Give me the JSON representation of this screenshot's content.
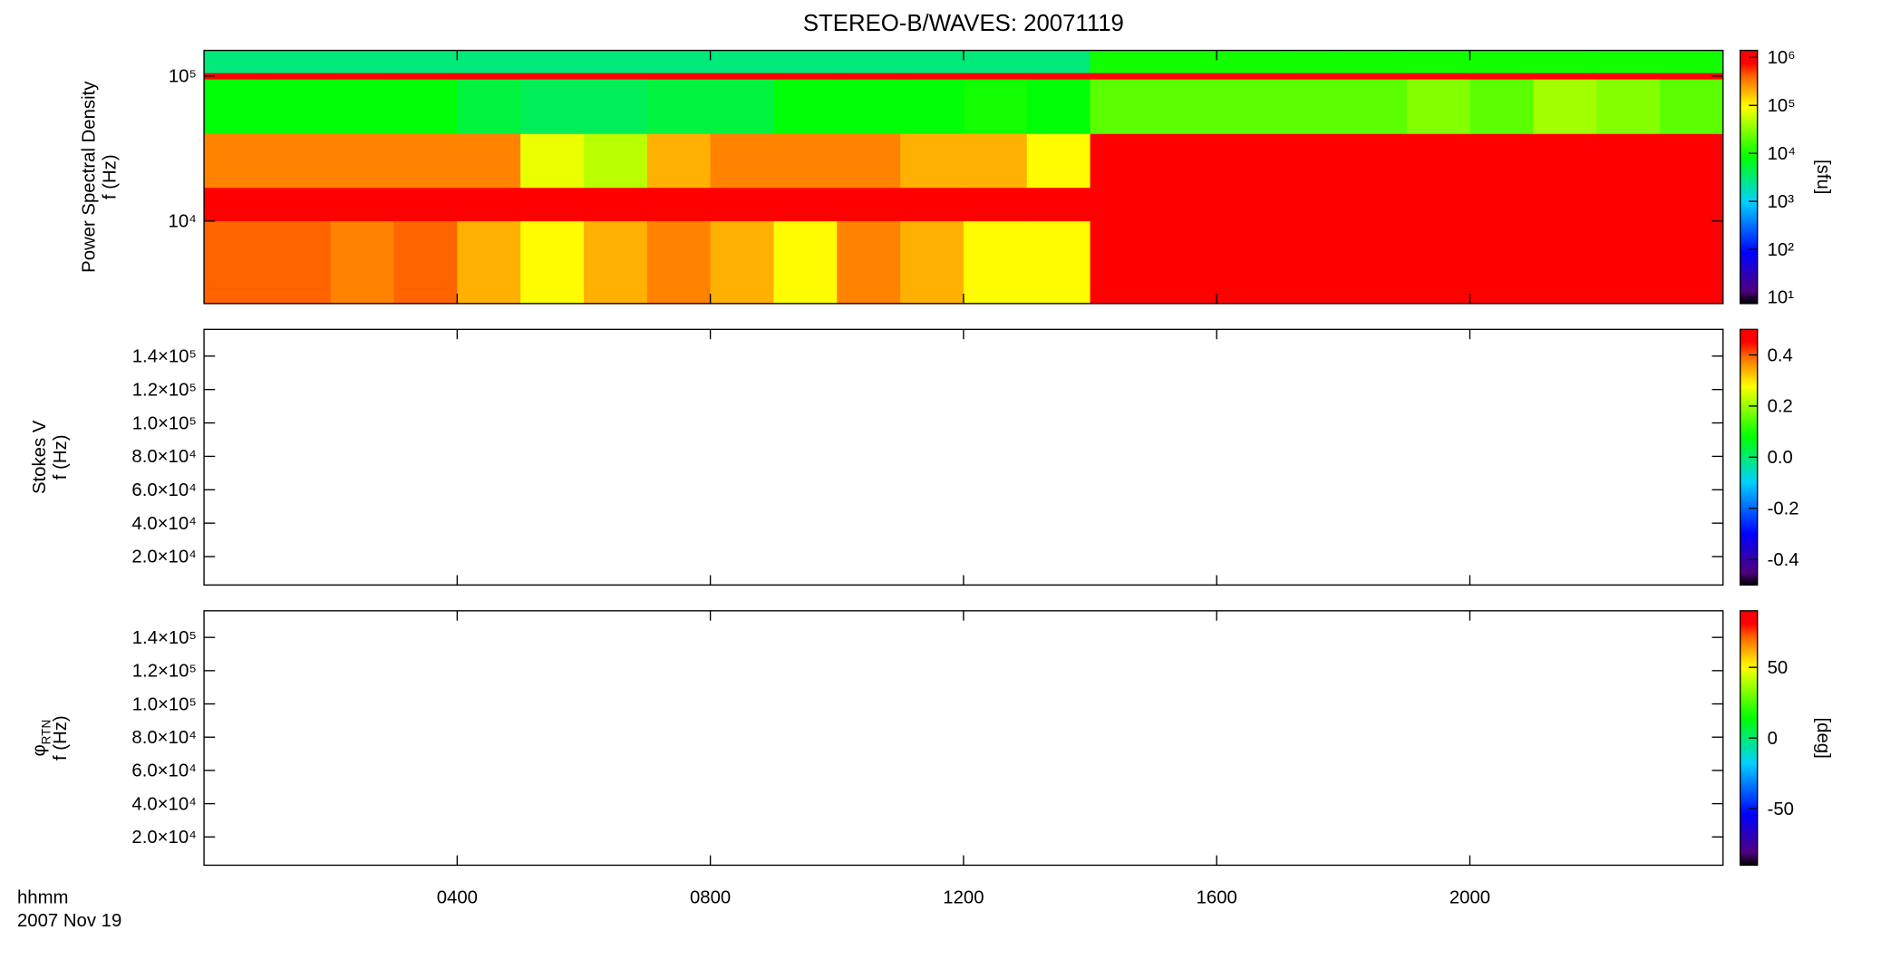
{
  "chart_data": [
    {
      "type": "heatmap",
      "title": "STEREO-B/WAVES: 20071119",
      "ylabel": [
        "Power Spectral Density",
        "f (Hz)"
      ],
      "xlim": [
        0,
        24
      ],
      "xticks": [
        {
          "value": 4,
          "label": "0400"
        },
        {
          "value": 8,
          "label": "0800"
        },
        {
          "value": 12,
          "label": "1200"
        },
        {
          "value": 16,
          "label": "1600"
        },
        {
          "value": 20,
          "label": "2000"
        }
      ],
      "ylog": true,
      "ylim": [
        2700,
        150000
      ],
      "yticks": [
        {
          "value": 10000,
          "label": "10⁴"
        },
        {
          "value": 100000,
          "label": "10⁵"
        }
      ],
      "x_edges": [
        0,
        1,
        2,
        3,
        4,
        5,
        6,
        7,
        8,
        9,
        10,
        11,
        12,
        13,
        14,
        15,
        16,
        17,
        18,
        19,
        20,
        21,
        22,
        23,
        24
      ],
      "y_edges": [
        2700,
        10000,
        17000,
        40000,
        95000,
        105000,
        150000
      ],
      "z": [
        [
          400000,
          400000,
          300000,
          400000,
          200000,
          100000,
          200000,
          300000,
          200000,
          100000,
          300000,
          200000,
          100000,
          100000,
          800000,
          800000,
          800000,
          800000,
          800000,
          800000,
          800000,
          800000,
          800000,
          800000
        ],
        [
          1200000,
          1200000,
          1200000,
          1200000,
          1200000,
          1200000,
          1200000,
          1200000,
          1200000,
          1200000,
          1200000,
          1200000,
          1200000,
          1200000,
          1200000,
          1200000,
          1200000,
          1200000,
          1200000,
          1200000,
          1200000,
          1200000,
          1200000,
          1200000
        ],
        [
          300000,
          300000,
          300000,
          300000,
          300000,
          80000,
          50000,
          200000,
          300000,
          300000,
          300000,
          200000,
          200000,
          100000,
          800000,
          800000,
          800000,
          800000,
          800000,
          800000,
          800000,
          800000,
          800000,
          800000
        ],
        [
          8000,
          8000,
          8000,
          8000,
          5000,
          4000,
          4000,
          5000,
          5000,
          8000,
          8000,
          8000,
          10000,
          8000,
          20000,
          20000,
          20000,
          20000,
          20000,
          30000,
          20000,
          40000,
          30000,
          20000
        ],
        [
          1000000,
          1000000,
          1000000,
          1000000,
          1000000,
          1000000,
          1000000,
          1000000,
          1000000,
          1000000,
          1000000,
          1000000,
          1000000,
          1000000,
          1000000,
          1000000,
          1000000,
          1000000,
          1000000,
          1000000,
          1000000,
          1000000,
          1000000,
          1000000
        ],
        [
          3000,
          3000,
          3000,
          3000,
          3000,
          3000,
          3000,
          3000,
          3000,
          3000,
          3000,
          3000,
          3000,
          3000,
          10000,
          10000,
          10000,
          10000,
          10000,
          10000,
          10000,
          10000,
          10000,
          10000
        ]
      ],
      "colorscale": "rainbow",
      "zlog": true,
      "zlim": [
        7.4,
        1400000
      ],
      "zticks": [
        {
          "value": 10,
          "label": "10¹"
        },
        {
          "value": 100,
          "label": "10²"
        },
        {
          "value": 1000,
          "label": "10³"
        },
        {
          "value": 10000,
          "label": "10⁴"
        },
        {
          "value": 100000,
          "label": "10⁵"
        },
        {
          "value": 1000000,
          "label": "10⁶"
        }
      ],
      "zlabel": "[sfu]"
    },
    {
      "type": "heatmap",
      "ylabel": [
        "Stokes V",
        "f (Hz)"
      ],
      "xlim": [
        0,
        24
      ],
      "xticks": [
        {
          "value": 4,
          "label": "0400"
        },
        {
          "value": 8,
          "label": "0800"
        },
        {
          "value": 12,
          "label": "1200"
        },
        {
          "value": 16,
          "label": "1600"
        },
        {
          "value": 20,
          "label": "2000"
        }
      ],
      "ylog": false,
      "ylim": [
        3000,
        156000
      ],
      "yticks": [
        {
          "value": 20000,
          "label": "2.0×10⁴"
        },
        {
          "value": 40000,
          "label": "4.0×10⁴"
        },
        {
          "value": 60000,
          "label": "6.0×10⁴"
        },
        {
          "value": 80000,
          "label": "8.0×10⁴"
        },
        {
          "value": 100000,
          "label": "1.0×10⁵"
        },
        {
          "value": 120000,
          "label": "1.2×10⁵"
        },
        {
          "value": 140000,
          "label": "1.4×10⁵"
        }
      ],
      "colorscale": "rainbow",
      "zlog": false,
      "zlim": [
        -0.5,
        0.5
      ],
      "zticks": [
        -0.4,
        -0.2,
        {
          "value": 0,
          "label": "0.0"
        },
        0.2,
        0.4
      ]
    },
    {
      "type": "heatmap",
      "ylabel": [
        "φ",
        "f (Hz)"
      ],
      "ylabel_sub": "RTN",
      "xlabel": [
        "hhmm",
        "2007 Nov 19"
      ],
      "xlim": [
        0,
        24
      ],
      "xticks": [
        {
          "value": 4,
          "label": "0400"
        },
        {
          "value": 8,
          "label": "0800"
        },
        {
          "value": 12,
          "label": "1200"
        },
        {
          "value": 16,
          "label": "1600"
        },
        {
          "value": 20,
          "label": "2000"
        }
      ],
      "ylog": false,
      "ylim": [
        3000,
        156000
      ],
      "yticks": [
        {
          "value": 20000,
          "label": "2.0×10⁴"
        },
        {
          "value": 40000,
          "label": "4.0×10⁴"
        },
        {
          "value": 60000,
          "label": "6.0×10⁴"
        },
        {
          "value": 80000,
          "label": "8.0×10⁴"
        },
        {
          "value": 100000,
          "label": "1.0×10⁵"
        },
        {
          "value": 120000,
          "label": "1.2×10⁵"
        },
        {
          "value": 140000,
          "label": "1.4×10⁵"
        }
      ],
      "colorscale": "rainbow",
      "zlog": false,
      "zlim": [
        -90,
        90
      ],
      "zticks": [
        -50,
        0,
        50
      ],
      "zlabel": "[deg]"
    }
  ]
}
